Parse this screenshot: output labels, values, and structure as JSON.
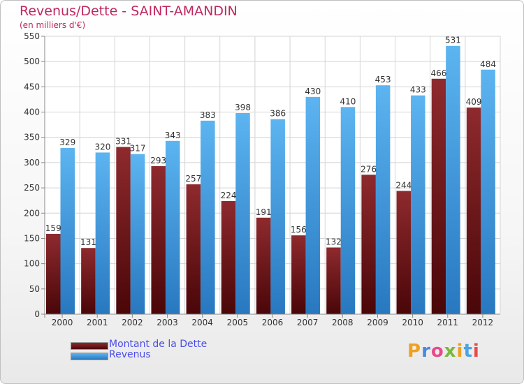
{
  "header": {
    "title": "Revenus/Dette - SAINT-AMANDIN",
    "subtitle": "(en milliers d'€)"
  },
  "chart_data": {
    "type": "bar",
    "categories": [
      "2000",
      "2001",
      "2002",
      "2003",
      "2004",
      "2005",
      "2006",
      "2007",
      "2008",
      "2009",
      "2010",
      "2011",
      "2012"
    ],
    "series": [
      {
        "name": "Montant de la Dette",
        "color": "#7a1518",
        "values": [
          159,
          131,
          331,
          293,
          257,
          224,
          191,
          156,
          132,
          276,
          244,
          466,
          409
        ]
      },
      {
        "name": "Revenus",
        "color": "#4aa3e6",
        "values": [
          329,
          320,
          317,
          343,
          383,
          398,
          386,
          430,
          410,
          453,
          433,
          531,
          484
        ]
      }
    ],
    "ylim": [
      0,
      550
    ],
    "yticks": [
      0,
      50,
      100,
      150,
      200,
      250,
      300,
      350,
      400,
      450,
      500,
      550
    ],
    "grid": true,
    "legend": "bottom-left"
  },
  "legend": {
    "items": [
      {
        "label": "Montant de la Dette",
        "color": "#7a1518"
      },
      {
        "label": "Revenus",
        "color": "#4aa3e6"
      }
    ]
  },
  "logo": {
    "text": "Proxiti",
    "letter_colors": [
      "#f0a020",
      "#4a8ad8",
      "#e84a8a",
      "#7ab83a",
      "#f0a020",
      "#4aa3e6",
      "#e84a4a"
    ]
  }
}
